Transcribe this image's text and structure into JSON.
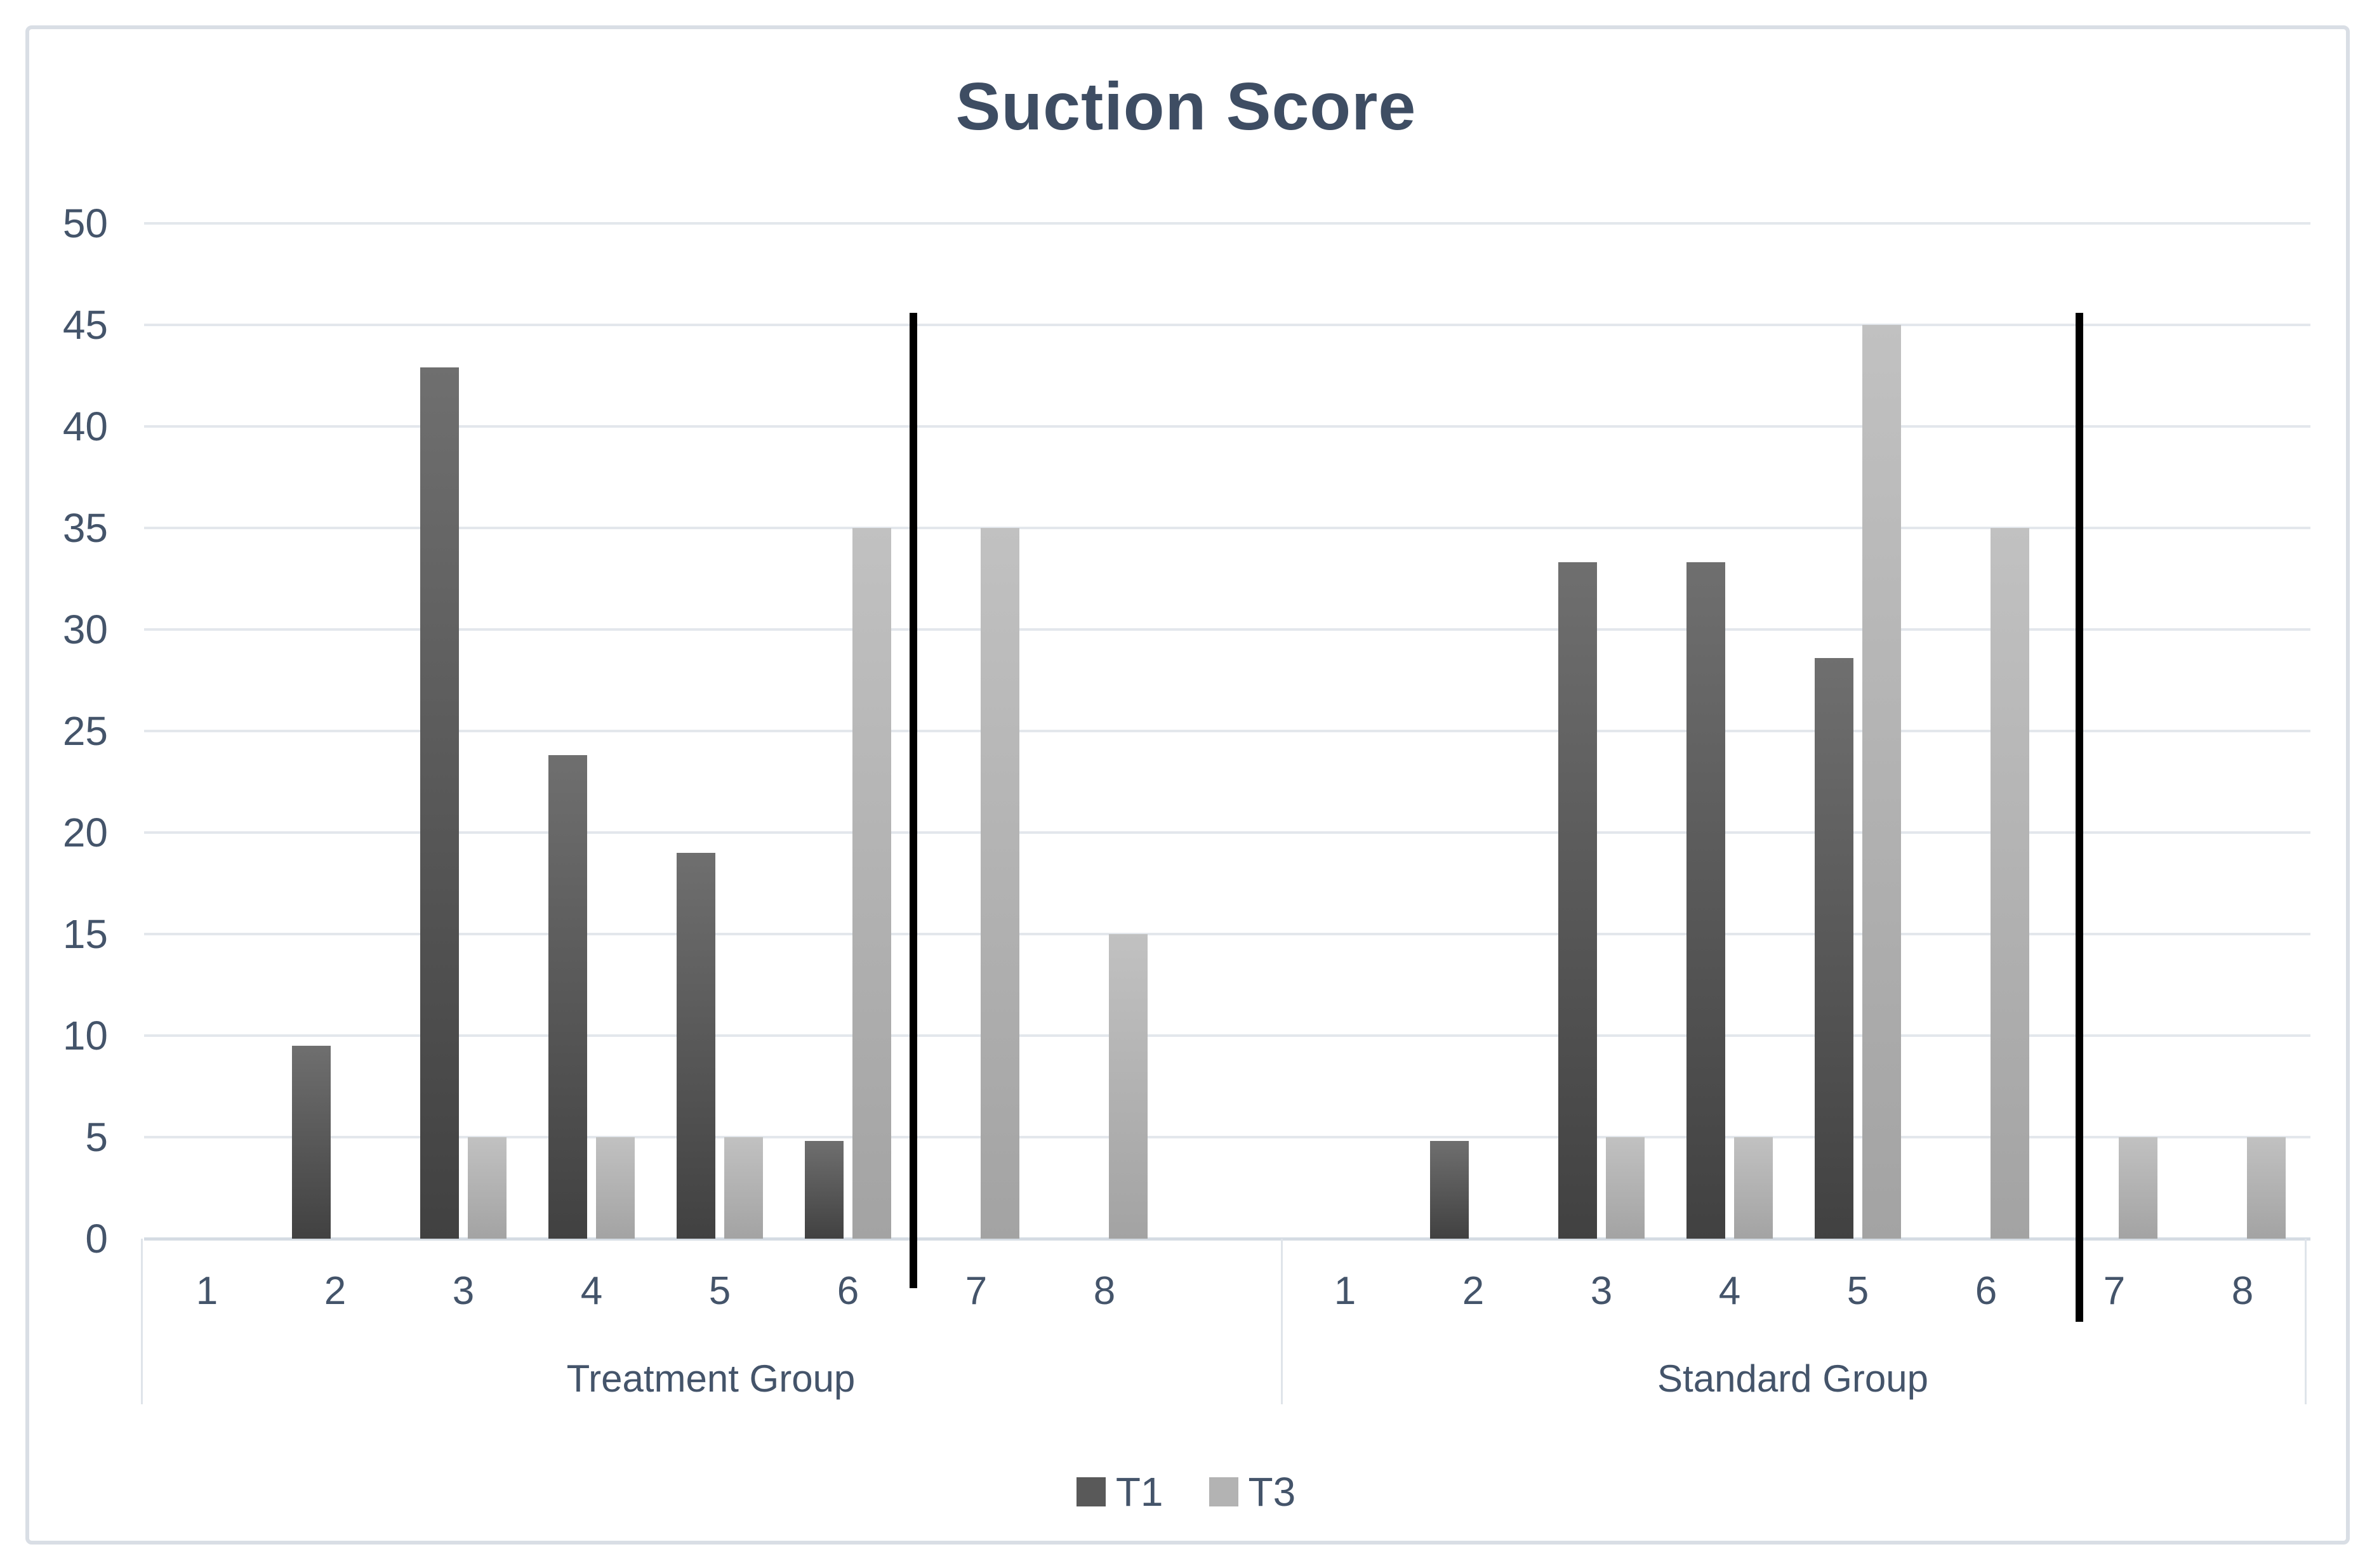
{
  "frame": {
    "border_color": "#d9dee5"
  },
  "chart_data": {
    "type": "bar",
    "title": "Suction Score",
    "title_color": "#3e4d63",
    "axis_text_color": "#44546A",
    "xlabel": "",
    "ylabel": "",
    "ylim": [
      0,
      50
    ],
    "yticks": [
      0,
      5,
      10,
      15,
      20,
      25,
      30,
      35,
      40,
      45,
      50
    ],
    "grid": true,
    "gridline_color": "#e3e7ec",
    "axis_line_color": "#d5dce3",
    "band_line_color": "#dfe4ea",
    "categories": [
      "1",
      "2",
      "3",
      "4",
      "5",
      "6",
      "7",
      "8"
    ],
    "series_styles": [
      {
        "name": "T1",
        "legend_color": "#595959",
        "bar_top": "#6f6f6f",
        "bar_bottom": "#414141"
      },
      {
        "name": "T3",
        "legend_color": "#b3b3b3",
        "bar_top": "#c1c1c1",
        "bar_bottom": "#a3a3a3"
      }
    ],
    "groups": [
      {
        "label": "Treatment Group",
        "series": [
          {
            "name": "T1",
            "values": [
              0,
              9.5,
              42.9,
              23.8,
              19,
              4.8,
              0,
              0
            ]
          },
          {
            "name": "T3",
            "values": [
              0,
              0,
              5,
              5,
              5,
              35,
              35,
              15
            ]
          }
        ],
        "vline_after_category": "6"
      },
      {
        "label": "Standard Group",
        "series": [
          {
            "name": "T1",
            "values": [
              0,
              4.8,
              33.3,
              33.3,
              28.6,
              0,
              0,
              0
            ]
          },
          {
            "name": "T3",
            "values": [
              0,
              0,
              5,
              5,
              45,
              35,
              5,
              5
            ]
          }
        ],
        "vline_after_category": "6"
      }
    ],
    "legend": {
      "position": "bottom",
      "entries": [
        "T1",
        "T3"
      ]
    },
    "annotation_color": "#000000"
  }
}
